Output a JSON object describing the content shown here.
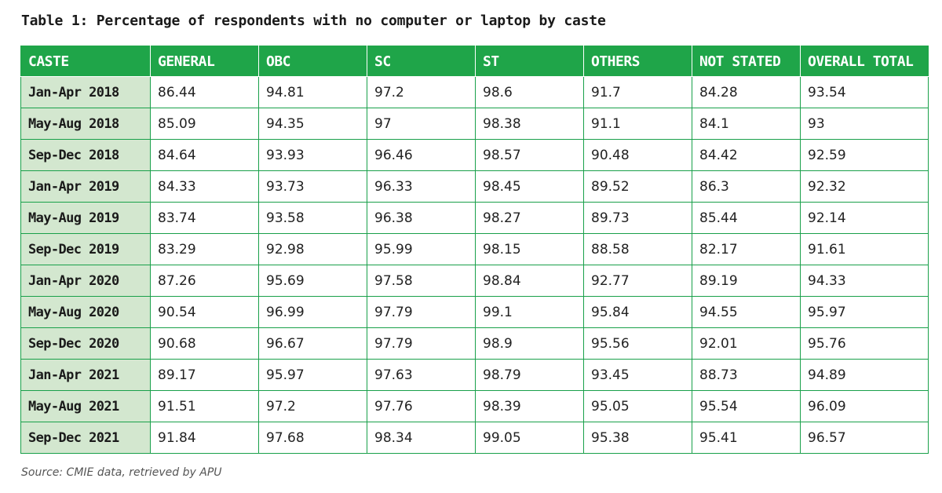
{
  "title": "Table 1: Percentage of respondents with no computer or laptop by caste",
  "source": "Source: CMIE data, retrieved by APU",
  "colors": {
    "header_bg": "#1fa549",
    "row_label_bg": "#d3e7cf",
    "border": "#19a04a"
  },
  "chart_data": {
    "type": "table",
    "title": "Table 1: Percentage of respondents with no computer or laptop by caste",
    "columns": [
      "CASTE",
      "GENERAL",
      "OBC",
      "SC",
      "ST",
      "OTHERS",
      "NOT STATED",
      "OVERALL TOTAL"
    ],
    "rows": [
      [
        "Jan-Apr 2018",
        "86.44",
        "94.81",
        "97.2",
        "98.6",
        "91.7",
        "84.28",
        "93.54"
      ],
      [
        "May-Aug 2018",
        "85.09",
        "94.35",
        "97",
        "98.38",
        "91.1",
        "84.1",
        "93"
      ],
      [
        "Sep-Dec 2018",
        "84.64",
        "93.93",
        "96.46",
        "98.57",
        "90.48",
        "84.42",
        "92.59"
      ],
      [
        "Jan-Apr 2019",
        "84.33",
        "93.73",
        "96.33",
        "98.45",
        "89.52",
        "86.3",
        "92.32"
      ],
      [
        "May-Aug 2019",
        "83.74",
        "93.58",
        "96.38",
        "98.27",
        "89.73",
        "85.44",
        "92.14"
      ],
      [
        "Sep-Dec 2019",
        "83.29",
        "92.98",
        "95.99",
        "98.15",
        "88.58",
        "82.17",
        "91.61"
      ],
      [
        "Jan-Apr 2020",
        "87.26",
        "95.69",
        "97.58",
        "98.84",
        "92.77",
        "89.19",
        "94.33"
      ],
      [
        "May-Aug 2020",
        "90.54",
        "96.99",
        "97.79",
        "99.1",
        "95.84",
        "94.55",
        "95.97"
      ],
      [
        "Sep-Dec 2020",
        "90.68",
        "96.67",
        "97.79",
        "98.9",
        "95.56",
        "92.01",
        "95.76"
      ],
      [
        "Jan-Apr 2021",
        "89.17",
        "95.97",
        "97.63",
        "98.79",
        "93.45",
        "88.73",
        "94.89"
      ],
      [
        "May-Aug 2021",
        "91.51",
        "97.2",
        "97.76",
        "98.39",
        "95.05",
        "95.54",
        "96.09"
      ],
      [
        "Sep-Dec 2021",
        "91.84",
        "97.68",
        "98.34",
        "99.05",
        "95.38",
        "95.41",
        "96.57"
      ]
    ]
  }
}
